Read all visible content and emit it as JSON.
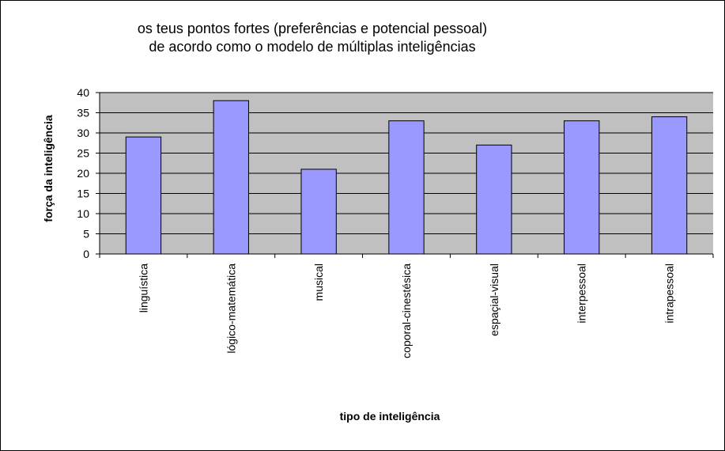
{
  "chart_data": {
    "type": "bar",
    "title_lines": [
      "os teus pontos fortes (preferências e potencial pessoal)",
      "de acordo como o modelo de múltiplas inteligências"
    ],
    "xlabel": "tipo de inteligência",
    "ylabel": "força da inteligência",
    "categories": [
      "linguística",
      "lógico-matemática",
      "musical",
      "coporal-cinestésica",
      "espaçial-visual",
      "interpessoal",
      "intrapessoal"
    ],
    "values": [
      29,
      38,
      21,
      33,
      27,
      33,
      34
    ],
    "ylim": [
      0,
      40
    ],
    "yticks": [
      0,
      5,
      10,
      15,
      20,
      25,
      30,
      35,
      40
    ],
    "grid": true,
    "legend": "none",
    "colors": {
      "bar_fill": "#9999ff",
      "bar_stroke": "#000000",
      "plot_background": "#c0c0c0",
      "gridline": "#000000"
    }
  }
}
